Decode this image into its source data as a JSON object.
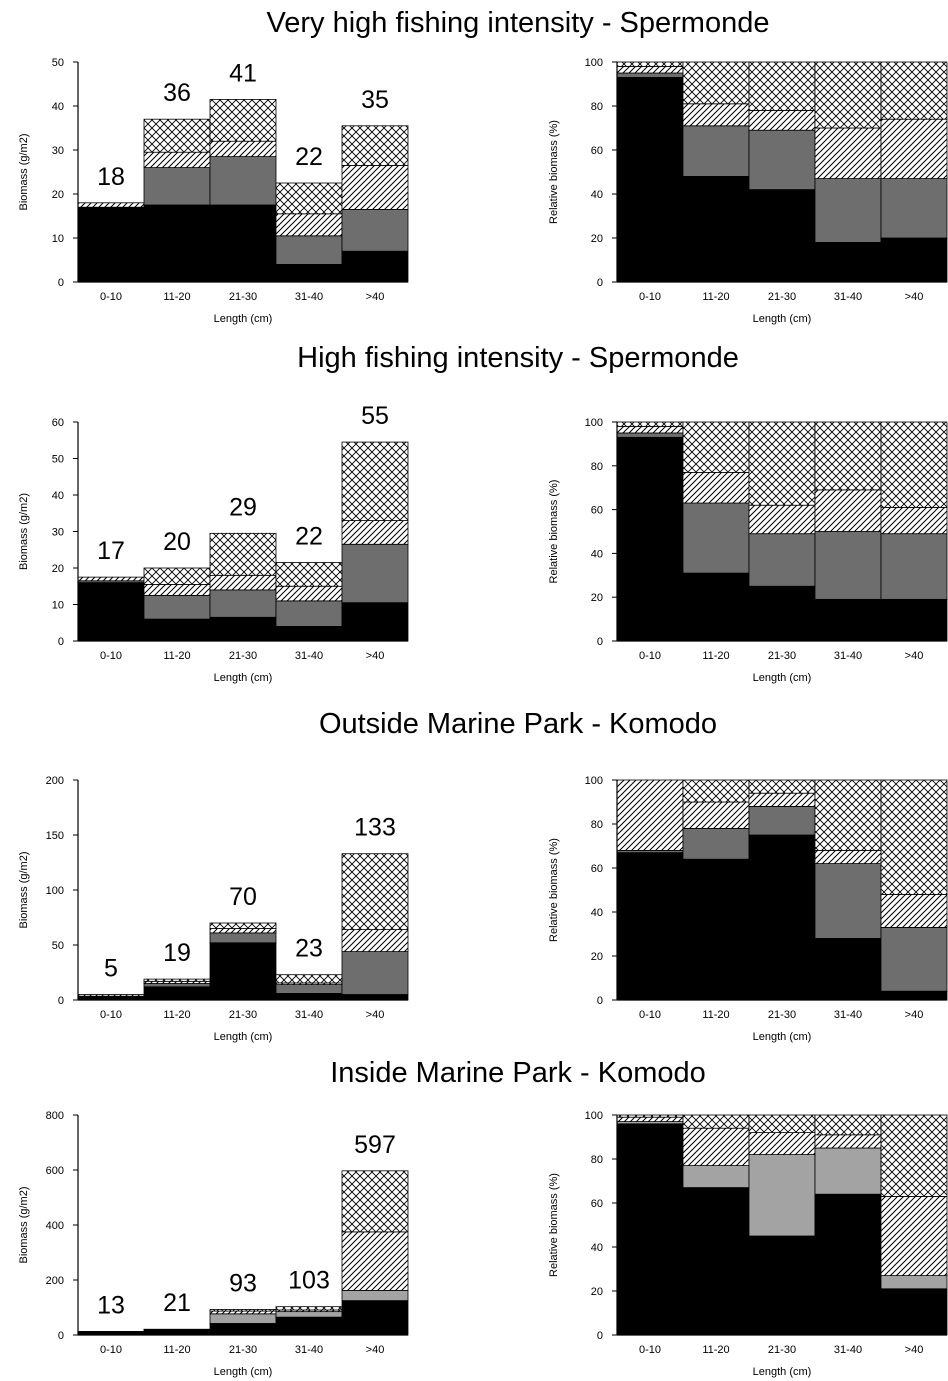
{
  "categories": [
    "0-10",
    "11-20",
    "21-30",
    "31-40",
    ">40"
  ],
  "xlabel": "Length (cm)",
  "ylabel_abs": "Biomass (g/m2)",
  "ylabel_rel": "Relative biomass (%)",
  "chart_data": [
    {
      "type": "bar",
      "stacked": true,
      "title": "Very high fishing intensity - Spermonde",
      "ylim": [
        0,
        50
      ],
      "yticks": [
        0,
        10,
        20,
        30,
        40,
        50
      ],
      "totals": [
        "18",
        "36",
        "41",
        "22",
        "35"
      ],
      "series": [
        {
          "fill": "black",
          "values": [
            17,
            17.5,
            17.5,
            4,
            7
          ]
        },
        {
          "fill": "darkgray",
          "values": [
            0,
            8.5,
            11,
            6.5,
            9.5
          ]
        },
        {
          "fill": "lightgray",
          "values": [
            0,
            0,
            0,
            0,
            0
          ]
        },
        {
          "fill": "hatch",
          "values": [
            1,
            3.5,
            3.5,
            5,
            10
          ]
        },
        {
          "fill": "crosshatch",
          "values": [
            0,
            7.5,
            9.5,
            7,
            9
          ]
        }
      ],
      "relative": {
        "ylim": [
          0,
          100
        ],
        "yticks": [
          0,
          20,
          40,
          60,
          80,
          100
        ],
        "series": [
          {
            "fill": "black",
            "values": [
              93,
              48,
              42,
              18,
              20
            ]
          },
          {
            "fill": "darkgray",
            "values": [
              2,
              23,
              27,
              29,
              27
            ]
          },
          {
            "fill": "lightgray",
            "values": [
              0,
              0,
              0,
              0,
              0
            ]
          },
          {
            "fill": "hatch",
            "values": [
              3,
              10,
              9,
              23,
              27
            ]
          },
          {
            "fill": "crosshatch",
            "values": [
              2,
              19,
              22,
              30,
              26
            ]
          }
        ]
      }
    },
    {
      "type": "bar",
      "stacked": true,
      "title": "High fishing intensity - Spermonde",
      "ylim": [
        0,
        60
      ],
      "yticks": [
        0,
        10,
        20,
        30,
        40,
        50,
        60
      ],
      "totals": [
        "17",
        "20",
        "29",
        "22",
        "55"
      ],
      "series": [
        {
          "fill": "black",
          "values": [
            16,
            6,
            6.5,
            4,
            10.5
          ]
        },
        {
          "fill": "darkgray",
          "values": [
            0.5,
            6.5,
            7.5,
            7,
            16
          ]
        },
        {
          "fill": "lightgray",
          "values": [
            0,
            0,
            0,
            0,
            0
          ]
        },
        {
          "fill": "hatch",
          "values": [
            1,
            3,
            4,
            4,
            6.5
          ]
        },
        {
          "fill": "crosshatch",
          "values": [
            0,
            4.5,
            11.5,
            6.5,
            21.5
          ]
        }
      ],
      "relative": {
        "ylim": [
          0,
          100
        ],
        "yticks": [
          0,
          20,
          40,
          60,
          80,
          100
        ],
        "series": [
          {
            "fill": "black",
            "values": [
              93,
              31,
              25,
              19,
              19
            ]
          },
          {
            "fill": "darkgray",
            "values": [
              2,
              32,
              24,
              31,
              30
            ]
          },
          {
            "fill": "lightgray",
            "values": [
              0,
              0,
              0,
              0,
              0
            ]
          },
          {
            "fill": "hatch",
            "values": [
              3,
              14,
              13,
              19,
              12
            ]
          },
          {
            "fill": "crosshatch",
            "values": [
              2,
              23,
              38,
              31,
              39
            ]
          }
        ]
      }
    },
    {
      "type": "bar",
      "stacked": true,
      "title": "Outside Marine Park - Komodo",
      "ylim": [
        0,
        200
      ],
      "yticks": [
        0,
        50,
        100,
        150,
        200
      ],
      "totals": [
        "5",
        "19",
        "70",
        "23",
        "133"
      ],
      "series": [
        {
          "fill": "black",
          "values": [
            3.5,
            12,
            52,
            6,
            5
          ]
        },
        {
          "fill": "darkgray",
          "values": [
            0,
            3,
            9,
            8,
            39
          ]
        },
        {
          "fill": "lightgray",
          "values": [
            0,
            0,
            0,
            0,
            0
          ]
        },
        {
          "fill": "hatch",
          "values": [
            1.5,
            2,
            4,
            1.5,
            20
          ]
        },
        {
          "fill": "crosshatch",
          "values": [
            0,
            2,
            5,
            7.5,
            69
          ]
        }
      ],
      "relative": {
        "ylim": [
          0,
          100
        ],
        "yticks": [
          0,
          20,
          40,
          60,
          80,
          100
        ],
        "series": [
          {
            "fill": "black",
            "values": [
              67,
              64,
              75,
              28,
              4
            ]
          },
          {
            "fill": "darkgray",
            "values": [
              1,
              14,
              13,
              34,
              29
            ]
          },
          {
            "fill": "lightgray",
            "values": [
              0,
              0,
              0,
              0,
              0
            ]
          },
          {
            "fill": "hatch",
            "values": [
              32,
              12,
              6,
              6,
              15
            ]
          },
          {
            "fill": "crosshatch",
            "values": [
              0,
              10,
              6,
              32,
              52
            ]
          }
        ]
      }
    },
    {
      "type": "bar",
      "stacked": true,
      "title": "Inside Marine Park - Komodo",
      "ylim": [
        0,
        800
      ],
      "yticks": [
        0,
        200,
        400,
        600,
        800
      ],
      "totals": [
        "13",
        "21",
        "93",
        "103",
        "597"
      ],
      "series": [
        {
          "fill": "black",
          "values": [
            12,
            17,
            42,
            65,
            125
          ]
        },
        {
          "fill": "darkgray",
          "values": [
            0,
            0,
            0,
            0,
            0
          ]
        },
        {
          "fill": "lightgray",
          "values": [
            0,
            2,
            35,
            20,
            37
          ]
        },
        {
          "fill": "hatch",
          "values": [
            1,
            2,
            10,
            6,
            213
          ]
        },
        {
          "fill": "crosshatch",
          "values": [
            0,
            0,
            6,
            12,
            222
          ]
        }
      ],
      "relative": {
        "ylim": [
          0,
          100
        ],
        "yticks": [
          0,
          20,
          40,
          60,
          80,
          100
        ],
        "series": [
          {
            "fill": "black",
            "values": [
              96,
              67,
              45,
              64,
              21
            ]
          },
          {
            "fill": "darkgray",
            "values": [
              0,
              0,
              0,
              0,
              0
            ]
          },
          {
            "fill": "lightgray",
            "values": [
              1,
              10,
              37,
              21,
              6
            ]
          },
          {
            "fill": "hatch",
            "values": [
              2,
              17,
              10,
              6,
              36
            ]
          },
          {
            "fill": "crosshatch",
            "values": [
              1,
              6,
              8,
              9,
              37
            ]
          }
        ]
      }
    }
  ]
}
